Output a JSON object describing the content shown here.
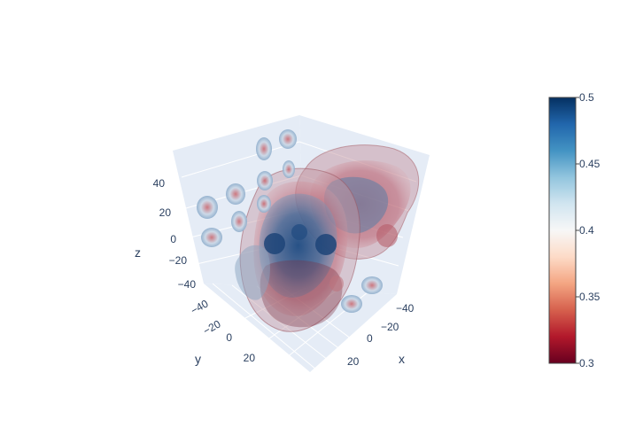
{
  "chart_data": {
    "type": "volume",
    "title": "",
    "scene": {
      "x_axis": {
        "label": "x",
        "ticks": [
          "−40",
          "−20",
          "0",
          "20"
        ]
      },
      "y_axis": {
        "label": "y",
        "ticks": [
          "−40",
          "−20",
          "0",
          "20"
        ]
      },
      "z_axis": {
        "label": "z",
        "ticks": [
          "40",
          "20",
          "0",
          "−20",
          "−40"
        ]
      },
      "background": "#e5ecf6",
      "grid": true
    },
    "colorbar": {
      "colorscale": "RdBu",
      "min": 0.3,
      "max": 0.5,
      "ticks": [
        "0.5",
        "0.45",
        "0.4",
        "0.35",
        "0.3"
      ],
      "stops": [
        "#67001f",
        "#b2182b",
        "#d6604d",
        "#f4a582",
        "#fddbc7",
        "#f7f7f7",
        "#d1e5f0",
        "#92c5de",
        "#4393c3",
        "#2166ac",
        "#053061"
      ]
    },
    "opacity": "semi-transparent",
    "blobs": [
      {
        "name": "large-central-cluster",
        "value": 0.5
      },
      {
        "name": "right-upper-cluster",
        "value": 0.36
      },
      {
        "name": "small-isosurfaces",
        "value": 0.4
      }
    ]
  }
}
